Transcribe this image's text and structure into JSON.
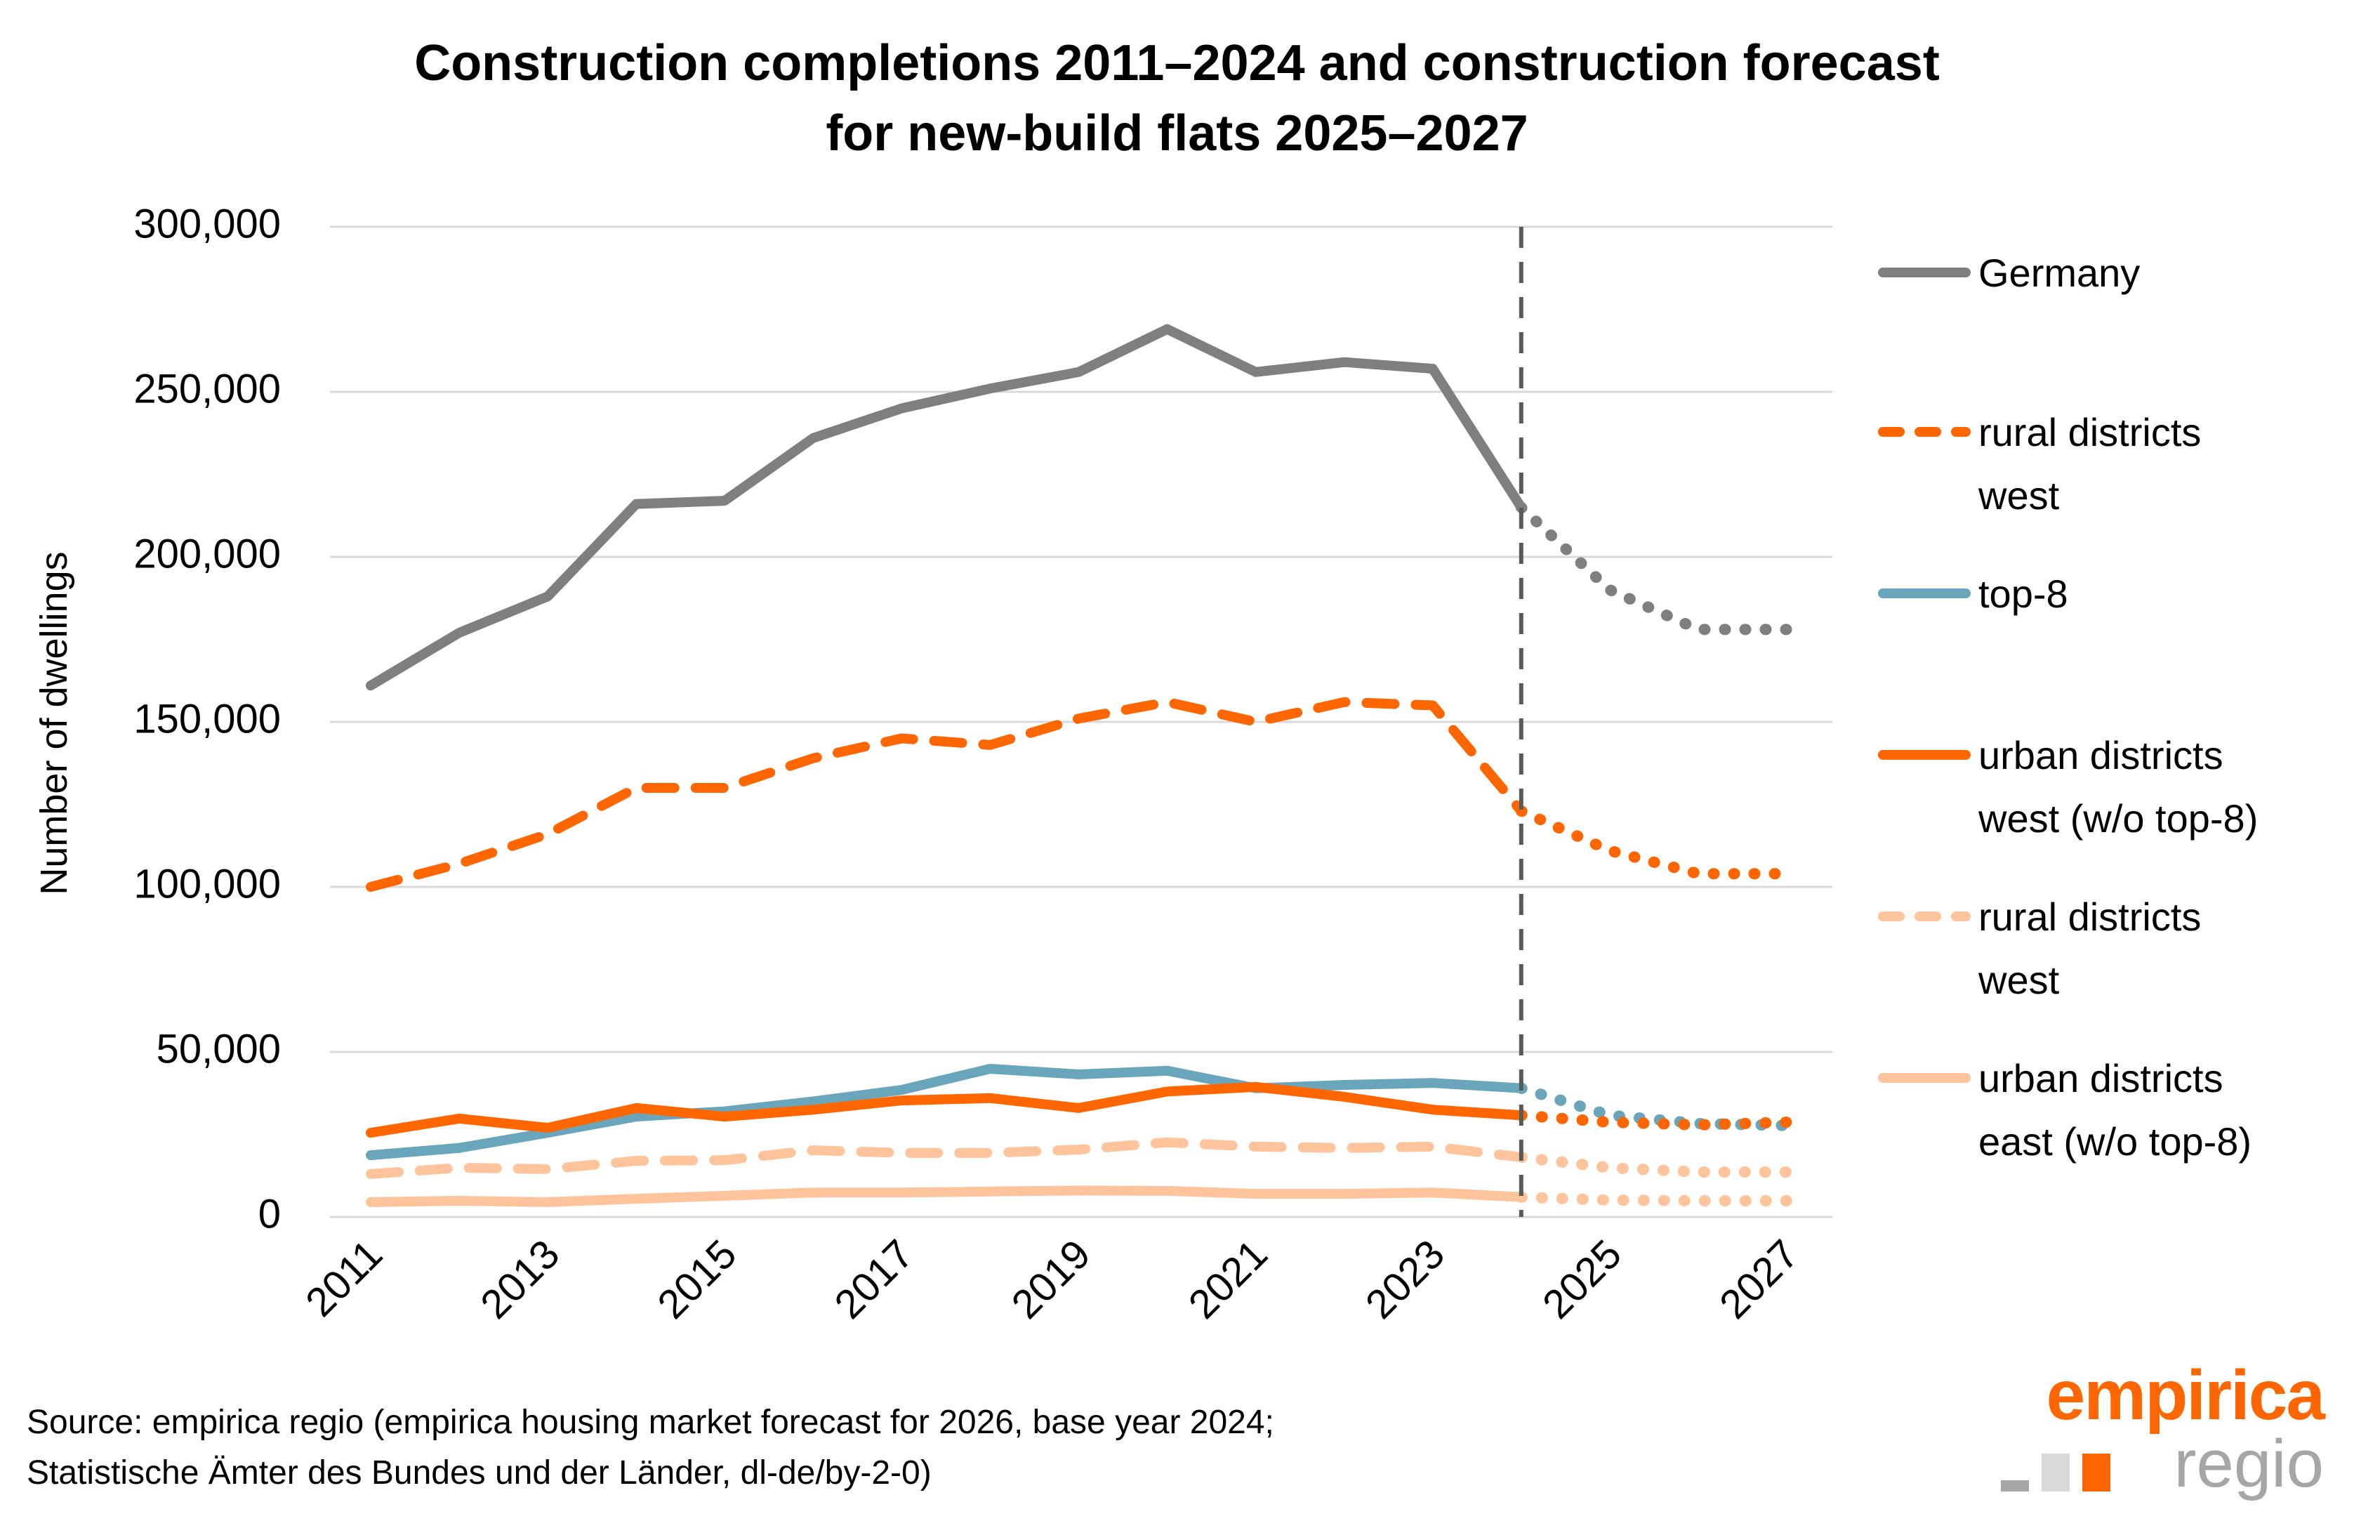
{
  "title": {
    "line1": "Construction completions 2011–2024 and construction forecast",
    "line2": "for new-build flats 2025–2027"
  },
  "source": {
    "line1": "Source: empirica regio (empirica housing market forecast for 2026, base year 2024;",
    "line2": "Statistische Ämter des Bundes und der Länder, dl-de/by-2-0)"
  },
  "logo": {
    "brand": "empirica",
    "sub": "regio",
    "brand_color": "#ff6600",
    "sub_color": "#a6a6a6"
  },
  "chart_data": {
    "type": "line",
    "title": "Construction completions 2011–2024 and construction forecast for new-build flats 2025–2027",
    "xlabel": "",
    "ylabel": "Number of dwellings",
    "ylim": [
      0,
      300000
    ],
    "yticks": [
      0,
      50000,
      100000,
      150000,
      200000,
      250000,
      300000
    ],
    "ytick_labels": [
      "0",
      "50,000",
      "100,000",
      "150,000",
      "200,000",
      "250,000",
      "300,000"
    ],
    "x": [
      2011,
      2012,
      2013,
      2014,
      2015,
      2016,
      2017,
      2018,
      2019,
      2020,
      2021,
      2022,
      2023,
      2024,
      2025,
      2026,
      2027
    ],
    "xtick_labels": [
      "2011",
      "2013",
      "2015",
      "2017",
      "2019",
      "2021",
      "2023",
      "2025",
      "2027"
    ],
    "forecast_start": 2024,
    "forecast_marker": "vertical dashed line at 2024",
    "grid": "horizontal",
    "legend_position": "right",
    "series": [
      {
        "name": "Germany",
        "color": "#7f7f7f",
        "style": "solid",
        "values": [
          161000,
          177000,
          188000,
          216000,
          217000,
          236000,
          245000,
          251000,
          256000,
          269000,
          256000,
          259000,
          257000,
          215000,
          190000,
          178000,
          178000
        ]
      },
      {
        "name": "rural districts west",
        "color": "#ff6600",
        "style": "dashed",
        "values": [
          100000,
          107000,
          116000,
          130000,
          130000,
          139000,
          145000,
          143000,
          151000,
          156000,
          150000,
          156000,
          155000,
          123000,
          111000,
          104000,
          104000
        ]
      },
      {
        "name": "top-8",
        "color": "#69a5bb",
        "style": "solid",
        "values": [
          18700,
          20900,
          25500,
          30400,
          32000,
          35000,
          38500,
          44900,
          43200,
          44300,
          39000,
          40000,
          40600,
          39000,
          30800,
          28300,
          27700
        ]
      },
      {
        "name": "urban districts west (w/o top-8)",
        "color": "#ff6600",
        "style": "solid",
        "values": [
          25500,
          29800,
          27000,
          33000,
          30400,
          32500,
          35300,
          36000,
          33000,
          38000,
          39400,
          36400,
          32500,
          30800,
          28700,
          27900,
          28700
        ]
      },
      {
        "name": "rural districts west",
        "color": "#ffc49c",
        "style": "dashed",
        "values": [
          13000,
          14900,
          14500,
          17000,
          17200,
          20200,
          19400,
          19400,
          20400,
          22600,
          21300,
          20900,
          21300,
          18100,
          14900,
          13600,
          13600
        ]
      },
      {
        "name": "urban districts east (w/o top-8)",
        "color": "#ffc49c",
        "style": "solid",
        "values": [
          4500,
          4900,
          4500,
          5500,
          6400,
          7400,
          7400,
          7700,
          8000,
          7900,
          7000,
          7000,
          7400,
          6000,
          5100,
          4900,
          4900
        ]
      }
    ]
  }
}
